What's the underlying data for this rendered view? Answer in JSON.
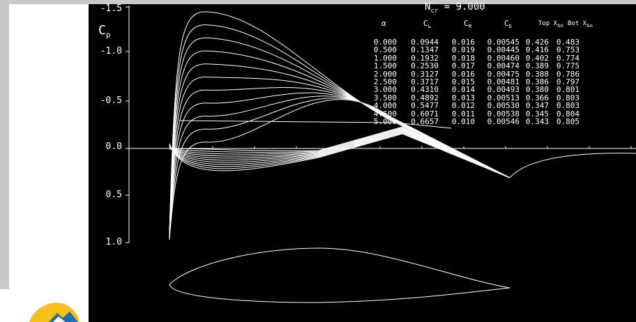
{
  "plot": {
    "title": "N",
    "title_sub": "cr",
    "title_value": "= 9.000",
    "y_axis_label": "C",
    "y_axis_label_sub": "p",
    "y_ticks": [
      "-1.5",
      "-1.0",
      "-0.5",
      "0.0",
      "0.5",
      "1.0"
    ],
    "table": {
      "headers": [
        {
          "main": "α",
          "sub": ""
        },
        {
          "main": "C",
          "sub": "L"
        },
        {
          "main": "C",
          "sub": "M"
        },
        {
          "main": "C",
          "sub": "D"
        },
        {
          "main": "Top X",
          "sub": "tr"
        },
        {
          "main": "Bot X",
          "sub": "tr"
        }
      ],
      "rows": [
        [
          "0.000",
          "0.0944",
          "0.016",
          "0.00545",
          "0.426",
          "0.483"
        ],
        [
          "0.500",
          "0.1347",
          "0.019",
          "0.00445",
          "0.416",
          "0.753"
        ],
        [
          "1.000",
          "0.1932",
          "0.018",
          "0.00460",
          "0.402",
          "0.774"
        ],
        [
          "1.500",
          "0.2530",
          "0.017",
          "0.00474",
          "0.389",
          "0.775"
        ],
        [
          "2.000",
          "0.3127",
          "0.016",
          "0.00475",
          "0.388",
          "0.786"
        ],
        [
          "2.500",
          "0.3717",
          "0.015",
          "0.00481",
          "0.386",
          "0.797"
        ],
        [
          "3.000",
          "0.4310",
          "0.014",
          "0.00493",
          "0.380",
          "0.801"
        ],
        [
          "3.500",
          "0.4892",
          "0.013",
          "0.00513",
          "0.366",
          "0.803"
        ],
        [
          "4.000",
          "0.5477",
          "0.012",
          "0.00530",
          "0.347",
          "0.803"
        ],
        [
          "4.500",
          "0.6071",
          "0.011",
          "0.00538",
          "0.345",
          "0.804"
        ],
        [
          "5.000",
          "0.6657",
          "0.010",
          "0.00546",
          "0.343",
          "0.805"
        ]
      ]
    },
    "colors": {
      "background": "#000000",
      "foreground": "#ffffff",
      "panel": "#c9c9c9"
    }
  },
  "logo": {
    "icon": "app-logo-icon"
  }
}
